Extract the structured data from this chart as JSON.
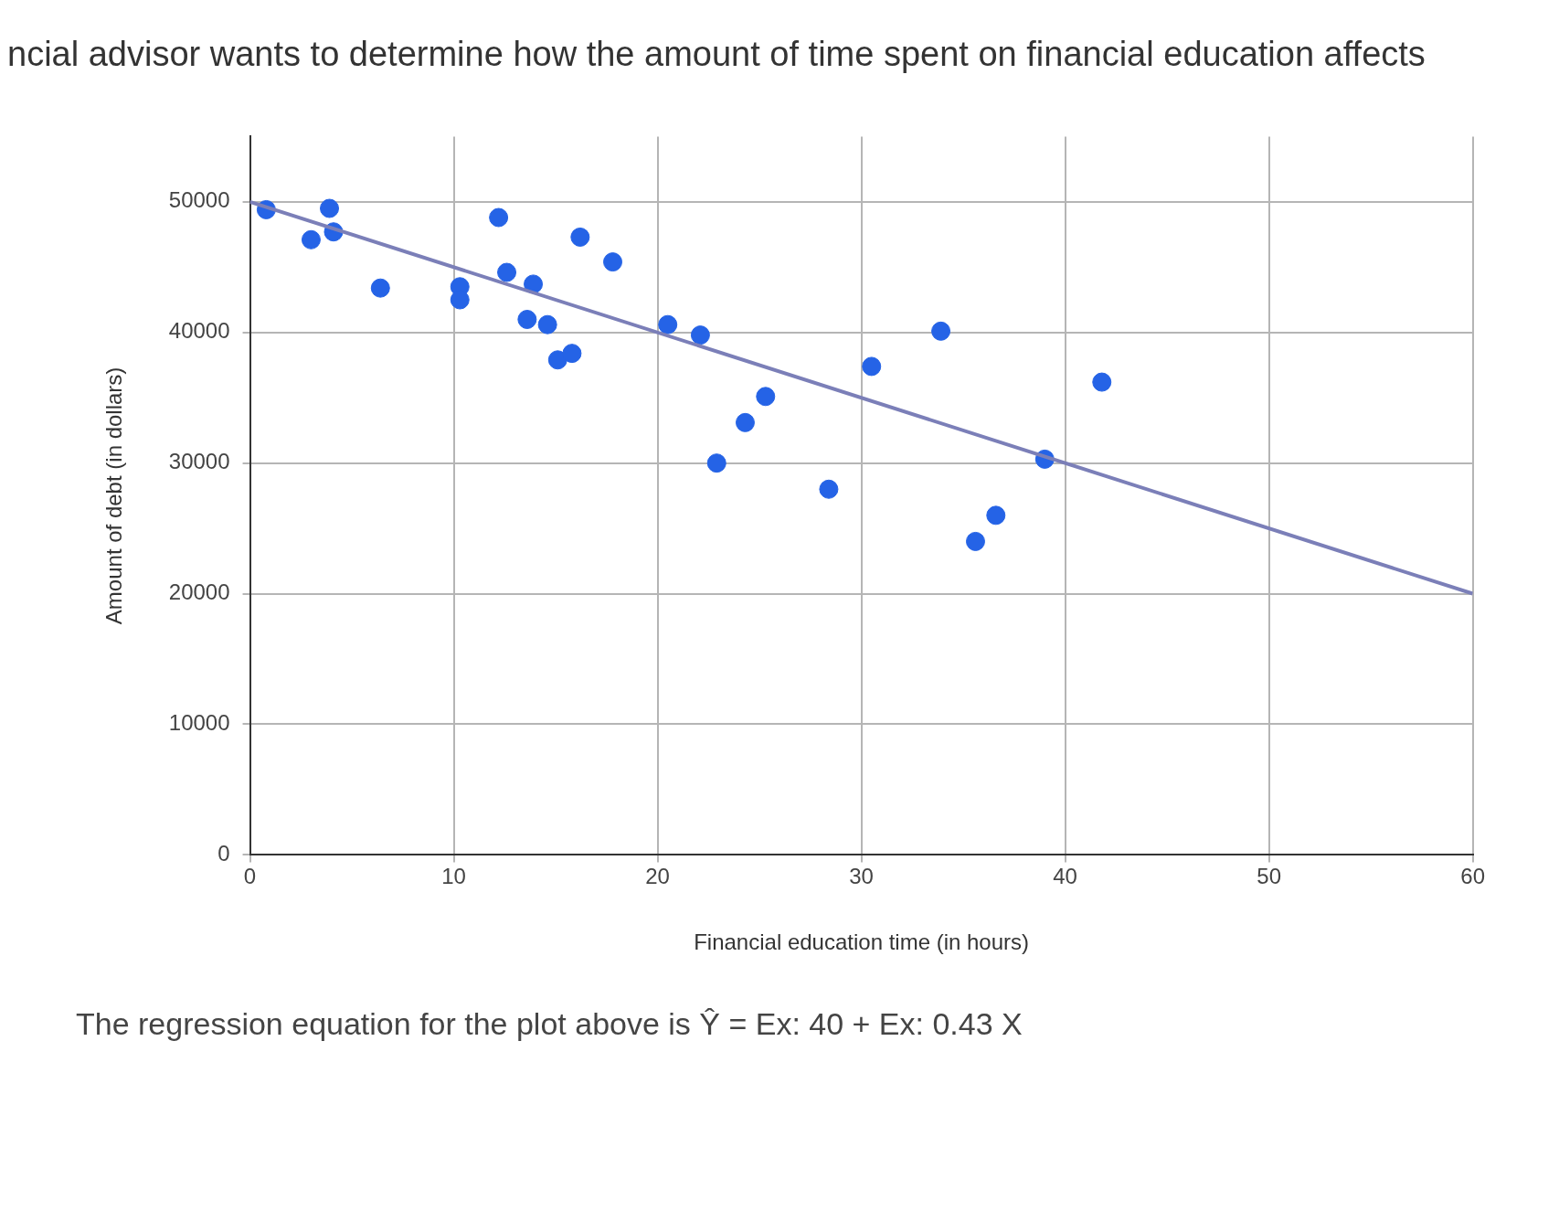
{
  "chart_data": {
    "type": "scatter",
    "title": "ncial advisor wants to determine how the amount of time spent on financial education affects",
    "xlabel": "Financial education time (in hours)",
    "ylabel": "Amount of debt (in dollars)",
    "xlim": [
      0,
      60
    ],
    "xticks": [
      0,
      10,
      20,
      30,
      40,
      50,
      60
    ],
    "ylim": [
      0,
      55000
    ],
    "yticks": [
      0,
      10000,
      20000,
      30000,
      40000,
      50000
    ],
    "grid": true,
    "legend": false,
    "series": [
      {
        "marker": "circle",
        "color": "#2563e6",
        "x": [
          0.8,
          3,
          3.9,
          4.1,
          6.4,
          10.3,
          10.3,
          12.2,
          12.6,
          13.9,
          13.6,
          14.6,
          15.1,
          15.8,
          16.2,
          17.8,
          20.5,
          22.1,
          22.9,
          24.3,
          25.3,
          28.4,
          30.5,
          33.9,
          35.6,
          36.6,
          39,
          41.8
        ],
        "values": [
          49400,
          47100,
          49500,
          47700,
          43400,
          43500,
          42500,
          48800,
          44600,
          43700,
          41000,
          40600,
          37900,
          38400,
          47300,
          45400,
          40600,
          39800,
          30000,
          33100,
          35100,
          28000,
          37400,
          40100,
          24000,
          26000,
          30300,
          36200
        ]
      },
      {
        "type": "line",
        "marker": "none",
        "color": "#7b7fb8",
        "x": [
          0,
          60
        ],
        "values": [
          50000,
          20000
        ]
      }
    ],
    "annotations": [
      "The regression equation for the plot above is Ŷ = Ex: 40 + Ex: 0.43 X"
    ]
  }
}
